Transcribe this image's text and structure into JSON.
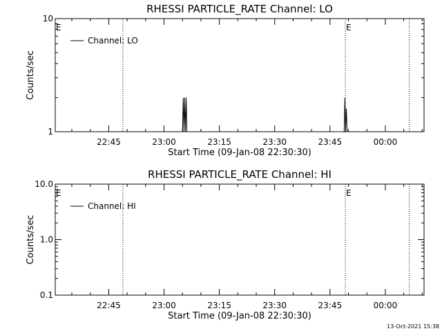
{
  "footer": {
    "timestamp": "13-Oct-2021 15:38"
  },
  "chart_data": [
    {
      "type": "line",
      "title": "RHESSI PARTICLE_RATE Channel: LO",
      "xlabel": "Start Time (09-Jan-08 22:30:30)",
      "ylabel": "Counts/sec",
      "y_scale": "log",
      "ylim": [
        1,
        10
      ],
      "y_ticks": [
        {
          "value": 1,
          "label": "1"
        },
        {
          "value": 10,
          "label": "10"
        }
      ],
      "xlim": [
        "22:30:30",
        "00:10:30"
      ],
      "x_ticks": [
        {
          "value": "22:45",
          "label": "22:45"
        },
        {
          "value": "23:00",
          "label": "23:00"
        },
        {
          "value": "23:15",
          "label": "23:15"
        },
        {
          "value": "23:30",
          "label": "23:30"
        },
        {
          "value": "23:45",
          "label": "23:45"
        },
        {
          "value": "00:00",
          "label": "00:00"
        }
      ],
      "vlines": [
        "22:48:50",
        "23:49:10",
        "00:06:30"
      ],
      "e_markers": [
        "22:30:30",
        "23:49:10"
      ],
      "e_label": "E",
      "legend": {
        "position": "top-left",
        "label": "Channel: LO"
      },
      "series": [
        {
          "name": "Channel: LO",
          "points": [
            [
              "23:05:00",
              1
            ],
            [
              "23:05:12",
              2
            ],
            [
              "23:05:24",
              1
            ],
            [
              "23:05:36",
              2
            ],
            [
              "23:05:48",
              1
            ],
            [
              "23:06:00",
              2
            ],
            [
              "23:06:12",
              1
            ],
            [
              "23:48:50",
              1
            ],
            [
              "23:49:02",
              2
            ],
            [
              "23:49:14",
              1
            ],
            [
              "23:49:26",
              1.6
            ],
            [
              "23:49:38",
              1
            ]
          ]
        }
      ]
    },
    {
      "type": "line",
      "title": "RHESSI PARTICLE_RATE Channel: HI",
      "xlabel": "Start Time (09-Jan-08 22:30:30)",
      "ylabel": "Counts/sec",
      "y_scale": "log",
      "ylim": [
        0.1,
        10
      ],
      "y_ticks": [
        {
          "value": 0.1,
          "label": "0.1"
        },
        {
          "value": 1,
          "label": "1.0"
        },
        {
          "value": 10,
          "label": "10.0"
        }
      ],
      "xlim": [
        "22:30:30",
        "00:10:30"
      ],
      "x_ticks": [
        {
          "value": "22:45",
          "label": "22:45"
        },
        {
          "value": "23:00",
          "label": "23:00"
        },
        {
          "value": "23:15",
          "label": "23:15"
        },
        {
          "value": "23:30",
          "label": "23:30"
        },
        {
          "value": "23:45",
          "label": "23:45"
        },
        {
          "value": "00:00",
          "label": "00:00"
        }
      ],
      "vlines": [
        "22:48:50",
        "23:49:10",
        "00:06:30"
      ],
      "e_markers": [
        "22:30:30",
        "23:49:10"
      ],
      "e_label": "E",
      "legend": {
        "position": "top-left",
        "label": "Channel: HI"
      },
      "series": [
        {
          "name": "Channel: HI",
          "points": []
        }
      ]
    }
  ]
}
